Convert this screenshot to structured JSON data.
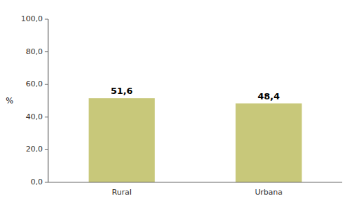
{
  "chart_data": {
    "type": "bar",
    "categories": [
      "Rural",
      "Urbana"
    ],
    "values": [
      51.6,
      48.4
    ],
    "value_labels": [
      "51,6",
      "48,4"
    ],
    "data_labels": true,
    "color": "#c8c87a",
    "ylabel": "%",
    "ylim": [
      0,
      100
    ],
    "yticks": [
      {
        "value": 0,
        "label": "0,0"
      },
      {
        "value": 20,
        "label": "20,0"
      },
      {
        "value": 40,
        "label": "40,0"
      },
      {
        "value": 60,
        "label": "60,0"
      },
      {
        "value": 80,
        "label": "80,0"
      },
      {
        "value": 100,
        "label": "100,0"
      }
    ],
    "grid": false
  }
}
